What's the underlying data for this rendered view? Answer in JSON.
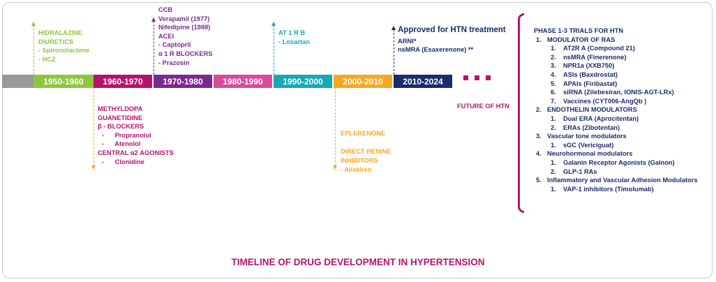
{
  "title": "TIMELINE OF DRUG DEVELOPMENT IN HYPERTENSION",
  "colors": {
    "green": "#8cc63f",
    "magenta": "#b5136b",
    "purple": "#7a2a8c",
    "pink": "#d84c9a",
    "teal": "#17a8b3",
    "orange": "#f6a820",
    "navy": "#1a2c6b",
    "gray": "#999999"
  },
  "segments": [
    {
      "label": "1950-1960"
    },
    {
      "label": "1960-1970"
    },
    {
      "label": "1970-1980"
    },
    {
      "label": "1980-1990"
    },
    {
      "label": "1990-2000"
    },
    {
      "label": "2000-2010"
    },
    {
      "label": "2010-2024"
    }
  ],
  "above": {
    "s1950": [
      "HIDRALAZINE",
      "DIURETICS",
      "-  Spironolactone",
      "-  HCZ"
    ],
    "s1970": [
      "CCB",
      "Verapamil (1977)",
      "Nifedipine (1988)",
      "ACEI",
      "- Captopril",
      "α 1 R BLOCKERS",
      "- Prazosin"
    ],
    "s1990": [
      "AT 1 R B",
      "- Losartan"
    ],
    "s2010_header": "Approved for HTN treatment",
    "s2010": [
      "ARNI*",
      "nsMRA (Esaxerenone) **"
    ]
  },
  "below": {
    "s1960": [
      {
        "text": "METHYLDOPA",
        "indent": 0
      },
      {
        "text": "GUANETIDINE",
        "indent": 0
      },
      {
        "text": "β - BLOCKERS",
        "indent": 0
      },
      {
        "text": "-      Propranolol",
        "indent": 1
      },
      {
        "text": "-      Atenolol",
        "indent": 1
      },
      {
        "text": "CENTRAL α2 AGONISTS",
        "indent": 0
      },
      {
        "text": "-      Clonidine",
        "indent": 1
      }
    ],
    "s2000": [
      "EPLERENONE",
      "",
      "DIRECT RENINE",
      "INHIBITORS",
      "- Aliskiren"
    ]
  },
  "future_label": "FUTURE OF HTN",
  "trials": {
    "header": "PHASE 1-3 TRIALS FOR HTN",
    "groups": [
      {
        "num": "1.",
        "name": "MODULATOR OF RAS",
        "items": [
          {
            "num": "1.",
            "text": "AT2R A (Compound 21)"
          },
          {
            "num": "2.",
            "text": "nsMRA (Finerenone)"
          },
          {
            "num": "3.",
            "text": "NPR1a (XXB750)"
          },
          {
            "num": "4.",
            "text": "ASIs (Baxdrostat)"
          },
          {
            "num": "5.",
            "text": "APAIs (Firibastat)"
          },
          {
            "num": "6.",
            "text": "siRNA (Zilebesiran, IONIS-AGT-LRx)"
          },
          {
            "num": "7.",
            "text": "Vaccines (CYT006-AngQb )"
          }
        ]
      },
      {
        "num": "2.",
        "name": "ENDOTHELIN MODULATORS",
        "items": [
          {
            "num": "1.",
            "text": "Dual ERA (Aprocitentan)"
          },
          {
            "num": "2.",
            "text": "ERAs (Zibotentan)"
          }
        ]
      },
      {
        "num": "3.",
        "name": "Vascular tone modulators",
        "items": [
          {
            "num": "1.",
            "text": "sGC (Vericiguat)"
          }
        ]
      },
      {
        "num": "4.",
        "name": "Neurohormonal modulators",
        "items": [
          {
            "num": "1.",
            "text": "Galanin Receptor Agonists (Galnon)"
          },
          {
            "num": "2.",
            "text": "GLP-1 RAs"
          }
        ]
      },
      {
        "num": "5.",
        "name": "Inflammatory and Vascular Adhesion Modulators",
        "items": [
          {
            "num": "1.",
            "text": "VAP-1 inhibitors (Timolumab)"
          }
        ]
      }
    ]
  }
}
